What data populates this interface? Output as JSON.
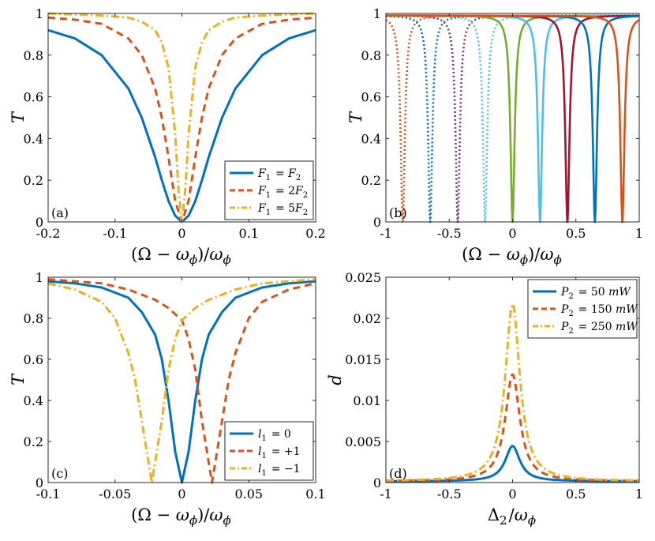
{
  "colors": {
    "blue": "#0072BD",
    "orange": "#D95319",
    "yellow": "#EDB120",
    "purple": "#7E2F8E",
    "green": "#77AC30",
    "lightblue": "#4DBEEE",
    "crimson": "#A2142F"
  },
  "chart_data": [
    {
      "id": "a",
      "type": "line",
      "panel_label": "(a)",
      "xlabel": "(Ω − ωϕ)/ωϕ",
      "ylabel": "T",
      "xlim": [
        -0.2,
        0.2
      ],
      "ylim": [
        0,
        1
      ],
      "xticks": [
        -0.2,
        -0.1,
        0,
        0.1,
        0.2
      ],
      "xtick_labels": [
        "-0.2",
        "-0.1",
        "0",
        "0.1",
        "0.2"
      ],
      "yticks": [
        0,
        0.2,
        0.4,
        0.6,
        0.8,
        1
      ],
      "ytick_labels": [
        "0",
        "0.2",
        "0.4",
        "0.6",
        "0.8",
        "1"
      ],
      "legend_position": "bottom-right",
      "series": [
        {
          "name": "F1 = F2",
          "color": "blue",
          "style": "solid",
          "x": [
            -0.2,
            -0.16,
            -0.12,
            -0.08,
            -0.06,
            -0.04,
            -0.03,
            -0.02,
            -0.01,
            0,
            0.01,
            0.02,
            0.03,
            0.04,
            0.06,
            0.08,
            0.12,
            0.16,
            0.2
          ],
          "y": [
            0.92,
            0.88,
            0.8,
            0.64,
            0.5,
            0.31,
            0.2,
            0.1,
            0.03,
            0.0,
            0.03,
            0.1,
            0.2,
            0.31,
            0.5,
            0.64,
            0.8,
            0.88,
            0.92
          ]
        },
        {
          "name": "F1 = 2F2",
          "color": "orange",
          "style": "dashed",
          "x": [
            -0.2,
            -0.16,
            -0.12,
            -0.08,
            -0.06,
            -0.04,
            -0.03,
            -0.02,
            -0.01,
            0,
            0.01,
            0.02,
            0.03,
            0.04,
            0.06,
            0.08,
            0.12,
            0.16,
            0.2
          ],
          "y": [
            0.98,
            0.97,
            0.95,
            0.88,
            0.8,
            0.64,
            0.5,
            0.31,
            0.1,
            0.0,
            0.1,
            0.31,
            0.5,
            0.64,
            0.8,
            0.88,
            0.95,
            0.97,
            0.98
          ]
        },
        {
          "name": "F1 = 5F2",
          "color": "yellow",
          "style": "dashdot",
          "x": [
            -0.2,
            -0.16,
            -0.12,
            -0.08,
            -0.06,
            -0.04,
            -0.03,
            -0.02,
            -0.01,
            -0.005,
            0,
            0.005,
            0.01,
            0.02,
            0.03,
            0.04,
            0.06,
            0.08,
            0.12,
            0.16,
            0.2
          ],
          "y": [
            1.0,
            0.995,
            0.99,
            0.98,
            0.96,
            0.92,
            0.86,
            0.74,
            0.42,
            0.15,
            0.0,
            0.15,
            0.42,
            0.74,
            0.86,
            0.92,
            0.96,
            0.98,
            0.99,
            0.995,
            1.0
          ]
        }
      ]
    },
    {
      "id": "b",
      "type": "line",
      "panel_label": "(b)",
      "xlabel": "(Ω − ωϕ)/ωϕ",
      "ylabel": "T",
      "xlim": [
        -1,
        1
      ],
      "ylim": [
        0,
        1
      ],
      "xticks": [
        -1,
        -0.5,
        0,
        0.5,
        1
      ],
      "xtick_labels": [
        "-1",
        "-0.5",
        "0",
        "0.5",
        "1"
      ],
      "yticks": [
        0,
        0.2,
        0.4,
        0.6,
        0.8,
        1
      ],
      "ytick_labels": [
        "0",
        "0.2",
        "0.4",
        "0.6",
        "0.8",
        "1"
      ],
      "dip_halfwidth": 0.02,
      "baseline": 0.99,
      "series": [
        {
          "center": -0.867,
          "color": "orange",
          "style": "dotted"
        },
        {
          "center": -0.65,
          "color": "blue",
          "style": "dotted"
        },
        {
          "center": -0.433,
          "color": "purple",
          "style": "dotted"
        },
        {
          "center": -0.217,
          "color": "lightblue",
          "style": "dotted"
        },
        {
          "center": 0.0,
          "color": "green",
          "style": "solid"
        },
        {
          "center": 0.217,
          "color": "lightblue",
          "style": "solid"
        },
        {
          "center": 0.433,
          "color": "crimson",
          "style": "solid"
        },
        {
          "center": 0.65,
          "color": "blue",
          "style": "solid"
        },
        {
          "center": 0.867,
          "color": "orange",
          "style": "solid"
        }
      ]
    },
    {
      "id": "c",
      "type": "line",
      "panel_label": "(c)",
      "xlabel": "(Ω − ωϕ)/ωϕ",
      "ylabel": "T",
      "xlim": [
        -0.1,
        0.1
      ],
      "ylim": [
        0,
        1
      ],
      "xticks": [
        -0.1,
        -0.05,
        0,
        0.05,
        0.1
      ],
      "xtick_labels": [
        "-0.1",
        "-0.05",
        "0",
        "0.05",
        "0.1"
      ],
      "yticks": [
        0,
        0.2,
        0.4,
        0.6,
        0.8,
        1
      ],
      "ytick_labels": [
        "0",
        "0.2",
        "0.4",
        "0.6",
        "0.8",
        "1"
      ],
      "legend_position": "bottom-right",
      "series": [
        {
          "name": "l1 = 0",
          "color": "blue",
          "style": "solid",
          "x": [
            -0.1,
            -0.08,
            -0.06,
            -0.04,
            -0.03,
            -0.02,
            -0.015,
            -0.01,
            -0.005,
            0,
            0.005,
            0.01,
            0.015,
            0.02,
            0.03,
            0.04,
            0.06,
            0.08,
            0.1
          ],
          "y": [
            0.98,
            0.97,
            0.95,
            0.9,
            0.83,
            0.72,
            0.6,
            0.4,
            0.15,
            0.0,
            0.15,
            0.4,
            0.6,
            0.72,
            0.83,
            0.9,
            0.95,
            0.97,
            0.98
          ]
        },
        {
          "name": "l1 = +1",
          "color": "orange",
          "style": "dashed",
          "x": [
            -0.1,
            -0.08,
            -0.06,
            -0.04,
            -0.02,
            -0.01,
            0,
            0.005,
            0.01,
            0.015,
            0.0225,
            0.03,
            0.035,
            0.04,
            0.05,
            0.06,
            0.08,
            0.1
          ],
          "y": [
            0.99,
            0.98,
            0.97,
            0.94,
            0.89,
            0.85,
            0.79,
            0.7,
            0.55,
            0.3,
            0.0,
            0.3,
            0.5,
            0.63,
            0.8,
            0.88,
            0.94,
            0.97
          ]
        },
        {
          "name": "l1 = −1",
          "color": "yellow",
          "style": "dashdot",
          "x": [
            -0.1,
            -0.08,
            -0.06,
            -0.05,
            -0.04,
            -0.035,
            -0.03,
            -0.0225,
            -0.015,
            -0.01,
            -0.005,
            0,
            0.01,
            0.02,
            0.04,
            0.06,
            0.08,
            0.1
          ],
          "y": [
            0.97,
            0.94,
            0.88,
            0.8,
            0.63,
            0.5,
            0.3,
            0.0,
            0.3,
            0.55,
            0.7,
            0.79,
            0.85,
            0.89,
            0.94,
            0.97,
            0.98,
            0.99
          ]
        }
      ]
    },
    {
      "id": "d",
      "type": "line",
      "panel_label": "(d)",
      "xlabel": "Δ2/ωϕ",
      "ylabel": "d",
      "xlim": [
        -1,
        1
      ],
      "ylim": [
        0,
        0.025
      ],
      "xticks": [
        -1,
        -0.5,
        0,
        0.5,
        1
      ],
      "xtick_labels": [
        "-1",
        "-0.5",
        "0",
        "0.5",
        "1"
      ],
      "yticks": [
        0,
        0.005,
        0.01,
        0.015,
        0.02,
        0.025
      ],
      "ytick_labels": [
        "0",
        "0.005",
        "0.01",
        "0.015",
        "0.02",
        "0.025"
      ],
      "legend_position": "top-right",
      "series": [
        {
          "name": "P2 = 50 mW",
          "color": "blue",
          "style": "solid",
          "peak": 0.0043,
          "halfwidth": 0.07
        },
        {
          "name": "P2 = 150 mW",
          "color": "orange",
          "style": "dashed",
          "peak": 0.013,
          "halfwidth": 0.07
        },
        {
          "name": "P2 = 250 mW",
          "color": "yellow",
          "style": "dashdot",
          "peak": 0.0216,
          "halfwidth": 0.07
        }
      ]
    }
  ]
}
